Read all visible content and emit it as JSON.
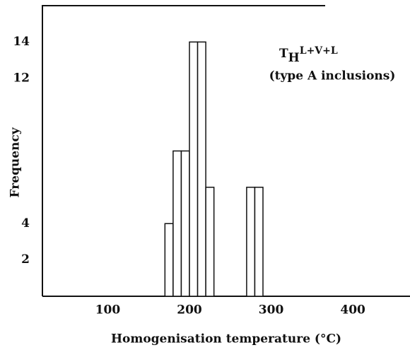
{
  "chart_data": {
    "type": "histogram",
    "xlabel": "Homogenisation temperature (°C)",
    "ylabel": "Frequency",
    "annotation": {
      "symbol": "T",
      "subscript": "H",
      "text": "L+V+L"
    },
    "annotation2": "(type A inclusions)",
    "bins": [
      170,
      180,
      190,
      200,
      210,
      220,
      230,
      240,
      250,
      260,
      270,
      280,
      290
    ],
    "counts": [
      4,
      8,
      8,
      14,
      14,
      6,
      0,
      0,
      0,
      0,
      6,
      6
    ],
    "color": "#ffffff",
    "xlim": [
      20,
      470
    ],
    "xticks": [
      100,
      200,
      300,
      400
    ],
    "ylim": [
      0,
      16
    ],
    "yticks": [
      2,
      4,
      12,
      14
    ]
  }
}
